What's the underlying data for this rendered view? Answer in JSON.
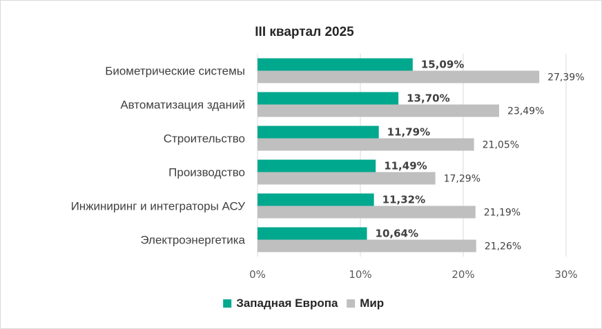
{
  "chart_data": {
    "type": "bar",
    "orientation": "horizontal",
    "title": "III квартал 2025",
    "categories": [
      "Биометрические системы",
      "Автоматизация зданий",
      "Строительство",
      "Производство",
      "Инжиниринг и интеграторы АСУ",
      "Электроэнергетика"
    ],
    "series": [
      {
        "name": "Западная Европа",
        "color": "#00a88e",
        "values": [
          15.09,
          13.7,
          11.79,
          11.49,
          11.32,
          10.64
        ],
        "labels": [
          "15,09%",
          "13,70%",
          "11,79%",
          "11,49%",
          "11,32%",
          "10,64%"
        ]
      },
      {
        "name": "Мир",
        "color": "#bfbfbf",
        "values": [
          27.39,
          23.49,
          21.05,
          17.29,
          21.19,
          21.26
        ],
        "labels": [
          "27,39%",
          "23,49%",
          "21,05%",
          "17,29%",
          "21,19%",
          "21,26%"
        ]
      }
    ],
    "xlim": [
      0,
      30
    ],
    "ticks": [
      0,
      10,
      20,
      30
    ],
    "tick_labels": [
      "0%",
      "10%",
      "20%",
      "30%"
    ],
    "xlabel": "",
    "ylabel": "",
    "grid": "vertical",
    "legend": "bottom-center"
  }
}
